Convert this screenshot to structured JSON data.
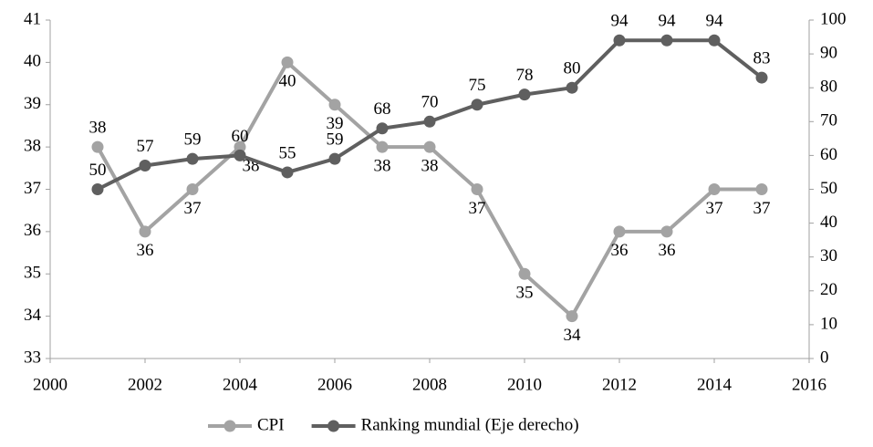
{
  "chart_data": {
    "type": "line",
    "x": [
      2001,
      2002,
      2003,
      2004,
      2005,
      2006,
      2007,
      2008,
      2009,
      2010,
      2011,
      2012,
      2013,
      2014,
      2015
    ],
    "series": [
      {
        "name": "CPI",
        "color": "#a3a3a3",
        "values": [
          38,
          36,
          37,
          38,
          40,
          39,
          38,
          38,
          37,
          35,
          34,
          36,
          36,
          37,
          37
        ]
      },
      {
        "name": "Ranking mundial (Eje derecho)",
        "color": "#5f5f5f",
        "axis": "y2",
        "values": [
          50,
          57,
          59,
          60,
          55,
          59,
          68,
          70,
          75,
          78,
          80,
          94,
          94,
          94,
          83
        ]
      }
    ],
    "xlim": [
      2000,
      2016
    ],
    "xticks": [
      2000,
      2002,
      2004,
      2006,
      2008,
      2010,
      2012,
      2014,
      2016
    ],
    "ylim": [
      33,
      41
    ],
    "yticks": [
      33,
      34,
      35,
      36,
      37,
      38,
      39,
      40,
      41
    ],
    "y2lim": [
      0,
      100
    ],
    "y2ticks": [
      0,
      10,
      20,
      30,
      40,
      50,
      60,
      70,
      80,
      90,
      100
    ],
    "legend": "bottom"
  }
}
